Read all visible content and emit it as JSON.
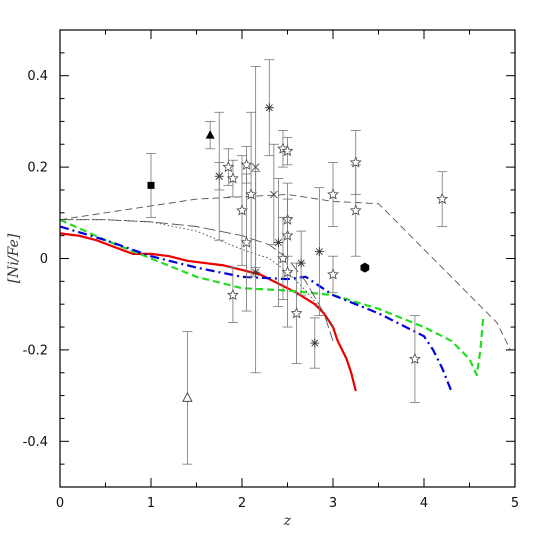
{
  "chart_data": {
    "type": "line",
    "title": "",
    "xlabel": "z",
    "ylabel": "[Ni/Fe]",
    "xlim": [
      0,
      5
    ],
    "ylim": [
      -0.5,
      0.5
    ],
    "grid": false,
    "legend": "none",
    "x_ticks": [
      0,
      1,
      2,
      3,
      4,
      5
    ],
    "x_tick_labels": [
      "0",
      "1",
      "2",
      "3",
      "4",
      "5"
    ],
    "y_ticks": [
      -0.4,
      -0.2,
      0,
      0.2,
      0.4
    ],
    "y_tick_labels": [
      "-0.4",
      "-0.2",
      "0",
      "0.2",
      "0.4"
    ],
    "series": [
      {
        "style": "solid",
        "color": "#ee0000",
        "x": [
          0,
          0.2,
          0.4,
          0.6,
          0.8,
          1.0,
          1.2,
          1.4,
          1.6,
          1.8,
          2.0,
          2.2,
          2.4,
          2.6,
          2.8,
          2.9,
          3.0,
          3.05,
          3.1,
          3.15,
          3.2,
          3.25
        ],
        "y": [
          0.055,
          0.05,
          0.04,
          0.025,
          0.01,
          0.01,
          0.005,
          -0.005,
          -0.01,
          -0.015,
          -0.025,
          -0.035,
          -0.055,
          -0.075,
          -0.1,
          -0.12,
          -0.15,
          -0.18,
          -0.2,
          -0.22,
          -0.25,
          -0.29
        ]
      },
      {
        "style": "dashed",
        "color": "#22dd22",
        "x": [
          0,
          0.5,
          1.0,
          1.5,
          2.0,
          2.5,
          3.0,
          3.5,
          4.0,
          4.3,
          4.5,
          4.58,
          4.62,
          4.65
        ],
        "y": [
          0.085,
          0.04,
          0.0,
          -0.04,
          -0.065,
          -0.07,
          -0.08,
          -0.11,
          -0.15,
          -0.18,
          -0.22,
          -0.255,
          -0.2,
          -0.13
        ]
      },
      {
        "style": "dashdot",
        "color": "#0000dd",
        "x": [
          0,
          0.5,
          1.0,
          1.5,
          2.0,
          2.5,
          2.7,
          3.0,
          3.5,
          4.0,
          4.1,
          4.2,
          4.3
        ],
        "y": [
          0.07,
          0.04,
          0.005,
          -0.02,
          -0.04,
          -0.045,
          -0.04,
          -0.08,
          -0.12,
          -0.17,
          -0.2,
          -0.24,
          -0.29
        ]
      },
      {
        "style": "dashed",
        "color": "#555555",
        "x": [
          0,
          0.5,
          1.0,
          1.5,
          2.0,
          2.5,
          3.0,
          3.5,
          3.6,
          3.8,
          4.0,
          4.2,
          4.5,
          4.8,
          4.95
        ],
        "y": [
          0.085,
          0.1,
          0.115,
          0.13,
          0.135,
          0.14,
          0.125,
          0.12,
          0.1,
          0.06,
          0.02,
          -0.02,
          -0.08,
          -0.14,
          -0.2
        ]
      },
      {
        "style": "longdash",
        "color": "#555555",
        "x": [
          0,
          0.5,
          1.0,
          1.5,
          2.0,
          2.3,
          2.5,
          2.7,
          2.9,
          3.0
        ],
        "y": [
          0.085,
          0.085,
          0.08,
          0.07,
          0.05,
          0.03,
          0.0,
          -0.05,
          -0.12,
          -0.18
        ]
      },
      {
        "style": "dotted",
        "color": "#444444",
        "x": [
          0,
          0.5,
          1.0,
          1.5,
          2.0,
          2.3,
          2.5,
          2.7,
          2.9,
          3.0
        ],
        "y": [
          0.085,
          0.085,
          0.08,
          0.06,
          0.02,
          0.0,
          -0.03,
          -0.07,
          -0.12,
          -0.15
        ]
      },
      {
        "style": "solid",
        "color": "#777777",
        "x": [
          4.9,
          4.98
        ],
        "y": [
          -0.2,
          -0.2
        ]
      }
    ],
    "points": [
      {
        "m": "square",
        "x": 1.0,
        "y": 0.16,
        "err": 0.07
      },
      {
        "m": "triangle",
        "x": 1.65,
        "y": 0.27,
        "err": 0.03
      },
      {
        "m": "triangle-open",
        "x": 1.4,
        "y": -0.305,
        "err": 0.145
      },
      {
        "m": "hexagon",
        "x": 3.35,
        "y": -0.02,
        "err": 0.0
      },
      {
        "m": "star",
        "x": 1.85,
        "y": 0.2,
        "err": 0.04
      },
      {
        "m": "star",
        "x": 1.9,
        "y": 0.175,
        "err": 0.04
      },
      {
        "m": "star",
        "x": 1.9,
        "y": -0.08,
        "err": 0.06
      },
      {
        "m": "star",
        "x": 2.0,
        "y": 0.105,
        "err": 0.12
      },
      {
        "m": "star",
        "x": 2.05,
        "y": 0.205,
        "err": 0.04
      },
      {
        "m": "star",
        "x": 2.05,
        "y": 0.035,
        "err": 0.15
      },
      {
        "m": "star",
        "x": 2.1,
        "y": 0.14,
        "err": 0.18
      },
      {
        "m": "star",
        "x": 2.45,
        "y": 0.0,
        "err": 0.09
      },
      {
        "m": "star",
        "x": 2.45,
        "y": 0.24,
        "err": 0.04
      },
      {
        "m": "star",
        "x": 2.5,
        "y": 0.085,
        "err": 0.08
      },
      {
        "m": "star",
        "x": 2.5,
        "y": 0.05,
        "err": 0.08
      },
      {
        "m": "star",
        "x": 2.5,
        "y": 0.235,
        "err": 0.03
      },
      {
        "m": "star",
        "x": 2.5,
        "y": -0.03,
        "err": 0.12
      },
      {
        "m": "star",
        "x": 2.6,
        "y": -0.12,
        "err": 0.11
      },
      {
        "m": "star",
        "x": 3.0,
        "y": 0.14,
        "err": 0.07
      },
      {
        "m": "star",
        "x": 3.0,
        "y": -0.035,
        "err": 0.04
      },
      {
        "m": "star",
        "x": 3.25,
        "y": 0.105,
        "err": 0.1
      },
      {
        "m": "star",
        "x": 3.25,
        "y": 0.21,
        "err": 0.07
      },
      {
        "m": "star",
        "x": 3.9,
        "y": -0.22,
        "err": 0.095
      },
      {
        "m": "star",
        "x": 4.2,
        "y": 0.13,
        "err": 0.06
      },
      {
        "m": "asterisk",
        "x": 1.75,
        "y": 0.18,
        "err": 0.14
      },
      {
        "m": "asterisk",
        "x": 2.15,
        "y": -0.03,
        "err": 0.22
      },
      {
        "m": "asterisk",
        "x": 2.3,
        "y": 0.33,
        "err": 0.105
      },
      {
        "m": "asterisk",
        "x": 2.4,
        "y": 0.035,
        "err": 0.14
      },
      {
        "m": "asterisk",
        "x": 2.8,
        "y": -0.185,
        "err": 0.055
      },
      {
        "m": "asterisk",
        "x": 2.85,
        "y": 0.015,
        "err": 0.14
      },
      {
        "m": "asterisk",
        "x": 2.65,
        "y": -0.01,
        "err": 0.07
      },
      {
        "m": "cross",
        "x": 2.35,
        "y": 0.14,
        "err": 0.11
      },
      {
        "m": "cross",
        "x": 2.15,
        "y": 0.2,
        "err": 0.22
      },
      {
        "m": "cross",
        "x": 1.75,
        "y": 0.18,
        "err": 0.03
      }
    ]
  }
}
